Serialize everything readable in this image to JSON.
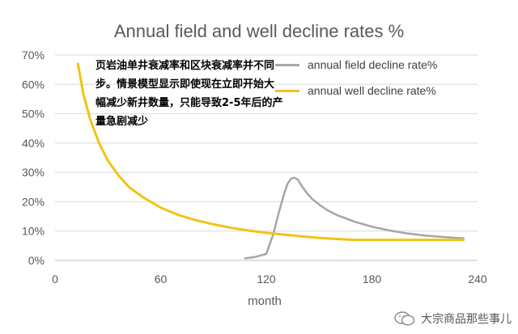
{
  "chart_data": {
    "type": "line",
    "title": "Annual field and well decline rates %",
    "xlabel": "month",
    "ylabel": "",
    "xlim": [
      0,
      240
    ],
    "ylim": [
      0,
      70
    ],
    "xticks": [
      0,
      60,
      120,
      180,
      240
    ],
    "yticks": [
      0,
      10,
      20,
      30,
      40,
      50,
      60,
      70
    ],
    "ytick_labels": [
      "0%",
      "10%",
      "20%",
      "30%",
      "40%",
      "50%",
      "60%",
      "70%"
    ],
    "grid": true,
    "legend_position": "top-right",
    "series": [
      {
        "name": "annual field decline rate%",
        "color": "#a6a6a6",
        "x": [
          108,
          114,
          120,
          124,
          127,
          130,
          132,
          134,
          136,
          138,
          140,
          143,
          146,
          150,
          155,
          160,
          170,
          180,
          190,
          200,
          210,
          220,
          232
        ],
        "y": [
          0.7,
          1.2,
          2.2,
          9,
          16,
          22.5,
          26,
          27.8,
          28.2,
          27.5,
          25.5,
          23,
          21,
          19,
          17,
          15.5,
          13.2,
          11.5,
          10.2,
          9.2,
          8.5,
          8,
          7.5
        ]
      },
      {
        "name": "annual well decline rate%",
        "color": "#f2c314",
        "x": [
          13,
          16,
          20,
          25,
          30,
          36,
          42,
          50,
          60,
          70,
          80,
          90,
          100,
          110,
          120,
          130,
          140,
          150,
          160,
          170,
          180,
          190,
          200,
          210,
          220,
          232
        ],
        "y": [
          67,
          57,
          48,
          40,
          34,
          29,
          25,
          21.5,
          18,
          15.5,
          13.7,
          12.3,
          11.1,
          10.2,
          9.4,
          8.8,
          8.2,
          7.7,
          7.3,
          7,
          7,
          7,
          7,
          7,
          7,
          7
        ]
      }
    ]
  },
  "annotation": {
    "text": "页岩油单井衰减率和区块衰减率并不同步。情景模型显示即使现在立即开始大幅减少新井数量，只能导致2-5年后的产量急剧减少"
  },
  "watermark": {
    "text": "大宗商品那些事儿",
    "icon": "wechat-icon"
  }
}
